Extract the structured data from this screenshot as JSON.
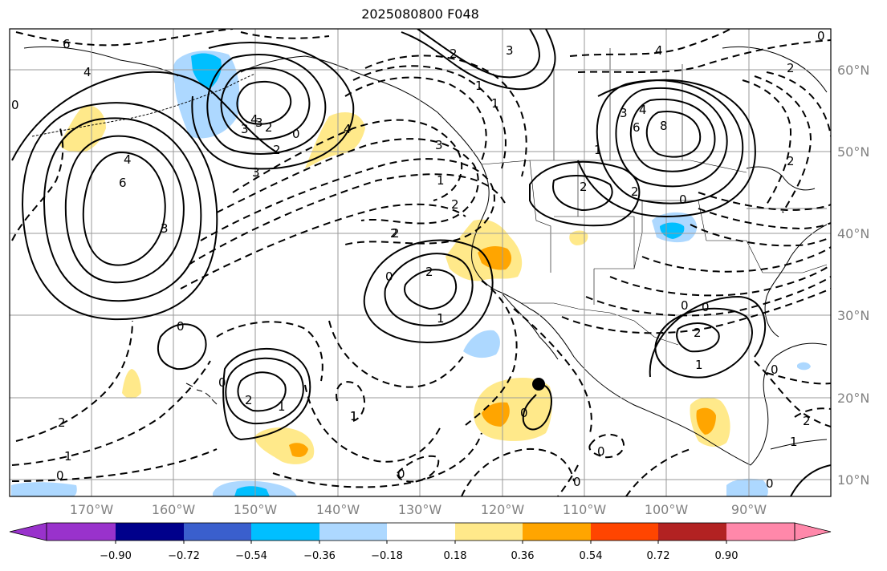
{
  "title": "2025080800 F048",
  "lat_labels": [
    "60°N",
    "50°N",
    "40°N",
    "30°N",
    "20°N",
    "10°N"
  ],
  "lon_labels": [
    "170°W",
    "160°W",
    "150°W",
    "140°W",
    "130°W",
    "120°W",
    "110°W",
    "100°W",
    "90°W"
  ],
  "colorbar": {
    "ticks": [
      "−0.90",
      "−0.72",
      "−0.54",
      "−0.36",
      "−0.18",
      "0.18",
      "0.36",
      "0.54",
      "0.72",
      "0.90"
    ],
    "colors": [
      "#9932cc",
      "#00008b",
      "#3a5fcd",
      "#00bfff",
      "#add8ff",
      "#ffffff",
      "#ffe98a",
      "#ffa500",
      "#ff4500",
      "#b22222",
      "#ff88aa"
    ]
  },
  "contour_labels": [
    "6",
    "4",
    "0",
    "3",
    "2",
    "4",
    "3",
    "2",
    "0",
    "4",
    "4",
    "3",
    "3",
    "4",
    "6",
    "8",
    "1",
    "2",
    "2",
    "0",
    "4",
    "6",
    "3",
    "1",
    "2",
    "2",
    "0",
    "3",
    "0",
    "2",
    "1",
    "2",
    "2",
    "0",
    "1",
    "2",
    "1",
    "0",
    "0",
    "2",
    "1",
    "0",
    "0",
    "2",
    "0",
    "0",
    "1",
    "0",
    "1",
    "2",
    "1",
    "0",
    "0",
    "2",
    "1",
    "0",
    "3",
    "2",
    "1"
  ],
  "colors": {
    "fill_light_blue": "#add8ff",
    "fill_blue": "#00bfff",
    "fill_yellow": "#ffe98a",
    "fill_orange": "#ffa500",
    "grid": "#9a9a9a",
    "contour": "#000000"
  }
}
